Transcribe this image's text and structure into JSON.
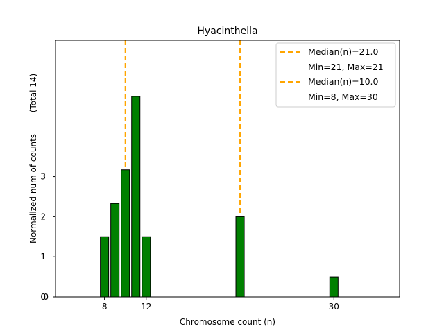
{
  "chart_data": {
    "type": "bar",
    "title": "Hyacinthella",
    "xlabel": "Chromosome count (n)",
    "ylabel": "Normalized num of counts",
    "ylabel_secondary": "(Total 14)",
    "xlim": [
      3.3,
      36.3
    ],
    "ylim": [
      0,
      6.4
    ],
    "x_ticks": [
      8,
      12,
      30
    ],
    "y_ticks": [
      0,
      1,
      2,
      3
    ],
    "bar_color": "#008000",
    "bar_edge_color": "#000000",
    "bars": [
      {
        "x": 8,
        "value": 1.5
      },
      {
        "x": 9,
        "value": 2.33
      },
      {
        "x": 10,
        "value": 3.17
      },
      {
        "x": 11,
        "value": 5.0
      },
      {
        "x": 12,
        "value": 1.5
      },
      {
        "x": 21,
        "value": 2.0
      },
      {
        "x": 30,
        "value": 0.5
      }
    ],
    "median_lines": [
      {
        "x": 21.0,
        "color": "#FFA500"
      },
      {
        "x": 10.0,
        "color": "#FFA500"
      }
    ],
    "legend": {
      "position": "upper right",
      "entries": [
        {
          "label": "Median(n)=21.0",
          "detail": "Min=21, Max=21"
        },
        {
          "label": "Median(n)=10.0",
          "detail": "Min=8, Max=30"
        }
      ]
    },
    "grid": false
  }
}
